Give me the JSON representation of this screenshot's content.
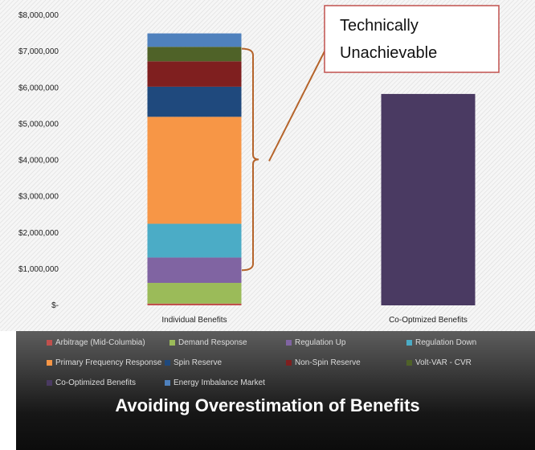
{
  "slide": {
    "title": "Avoiding Overestimation of Benefits"
  },
  "callout": {
    "line1": "Technically",
    "line2": "Unachievable"
  },
  "colors": {
    "arbitrage": "#c0504d",
    "demand_response": "#9bbb59",
    "regulation_up": "#8064a2",
    "regulation_down": "#4bacc6",
    "primary_frequency": "#f79646",
    "spin_reserve": "#1f497d",
    "non_spin_reserve": "#7f1f1f",
    "volt_var": "#4f6228",
    "energy_imbalance": "#4f81bd",
    "co_optimized": "#4a3a62",
    "bracket": "#b5642b"
  },
  "chart_data": {
    "type": "bar",
    "stacked": true,
    "categories": [
      "Individual Benefits",
      "Co-Optmized Benefits"
    ],
    "yticks": [
      "$8,000,000",
      "$7,000,000",
      "$6,000,000",
      "$5,000,000",
      "$4,000,000",
      "$3,000,000",
      "$2,000,000",
      "$1,000,000",
      "$-"
    ],
    "ylim": [
      0,
      8000000
    ],
    "grid": false,
    "legend_position": "bottom",
    "series": [
      {
        "name": "Arbitrage (Mid-Columbia)",
        "color_key": "arbitrage",
        "values": [
          50000,
          0
        ]
      },
      {
        "name": "Demand Response",
        "color_key": "demand_response",
        "values": [
          570000,
          0
        ]
      },
      {
        "name": "Regulation Up",
        "color_key": "regulation_up",
        "values": [
          700000,
          0
        ]
      },
      {
        "name": "Regulation Down",
        "color_key": "regulation_down",
        "values": [
          930000,
          0
        ]
      },
      {
        "name": "Primary Frequency Response",
        "color_key": "primary_frequency",
        "values": [
          2950000,
          0
        ]
      },
      {
        "name": "Spin Reserve",
        "color_key": "spin_reserve",
        "values": [
          830000,
          0
        ]
      },
      {
        "name": "Non-Spin Reserve",
        "color_key": "non_spin_reserve",
        "values": [
          700000,
          0
        ]
      },
      {
        "name": "Volt-VAR - CVR",
        "color_key": "volt_var",
        "values": [
          400000,
          0
        ]
      },
      {
        "name": "Co-Optimized Benefits",
        "color_key": "co_optimized",
        "values": [
          0,
          5830000
        ]
      },
      {
        "name": "Energy Imbalance Market",
        "color_key": "energy_imbalance",
        "values": [
          370000,
          0
        ]
      }
    ]
  }
}
